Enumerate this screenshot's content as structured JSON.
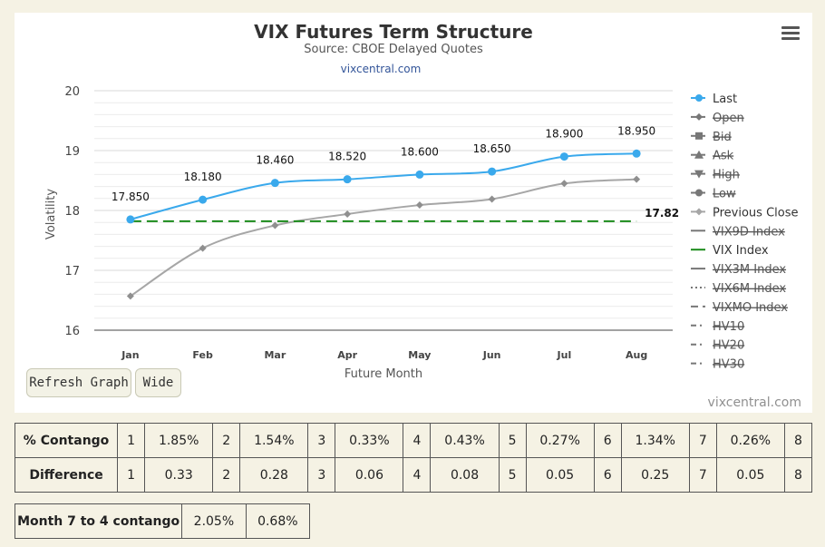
{
  "header": {
    "title": "VIX Futures Term Structure",
    "subtitle": "Source: CBOE Delayed Quotes",
    "link": "vixcentral.com",
    "credit": "vixcentral.com"
  },
  "buttons": {
    "refresh": "Refresh Graph",
    "wide": "Wide"
  },
  "menu_icon": "hamburger-menu-icon",
  "colors": {
    "last": "#3aa9ec",
    "previous_close": "#a6a6a6",
    "vix_index": "#1a8a1a",
    "legend_disabled": "#777777",
    "background": "#f5f2e4"
  },
  "chart_data": {
    "type": "line",
    "title": "VIX Futures Term Structure",
    "subtitle": "Source: CBOE Delayed Quotes",
    "xlabel": "Future Month",
    "ylabel": "Volatility",
    "categories": [
      "Jan",
      "Feb",
      "Mar",
      "Apr",
      "May",
      "Jun",
      "Jul",
      "Aug"
    ],
    "ylim": [
      16,
      20
    ],
    "yticks": [
      16,
      17,
      18,
      19,
      20
    ],
    "grid": true,
    "legend_position": "right",
    "series": [
      {
        "name": "Last",
        "values": [
          17.85,
          18.18,
          18.46,
          18.52,
          18.6,
          18.65,
          18.9,
          18.95
        ],
        "labels": [
          "17.850",
          "18.180",
          "18.460",
          "18.520",
          "18.600",
          "18.650",
          "18.900",
          "18.950"
        ],
        "color": "#3aa9ec"
      },
      {
        "name": "Previous Close",
        "values": [
          16.57,
          17.37,
          17.75,
          17.94,
          18.09,
          18.19,
          18.45,
          18.52
        ],
        "color": "#a6a6a6"
      },
      {
        "name": "VIX Index",
        "values": [
          17.82,
          17.82,
          17.82,
          17.82,
          17.82,
          17.82,
          17.82,
          17.82
        ],
        "label": "17.82",
        "color": "#1a8a1a",
        "dash": true
      }
    ],
    "legend": [
      {
        "name": "Last",
        "symbol": "circle",
        "enabled": true
      },
      {
        "name": "Open",
        "symbol": "diamond",
        "enabled": false
      },
      {
        "name": "Bid",
        "symbol": "square",
        "enabled": false
      },
      {
        "name": "Ask",
        "symbol": "triangle",
        "enabled": false
      },
      {
        "name": "High",
        "symbol": "triangle-down",
        "enabled": false
      },
      {
        "name": "Low",
        "symbol": "circle",
        "enabled": false
      },
      {
        "name": "Previous Close",
        "symbol": "diamond",
        "enabled": true
      },
      {
        "name": "VIX9D Index",
        "symbol": "line",
        "enabled": false
      },
      {
        "name": "VIX Index",
        "symbol": "line",
        "enabled": true
      },
      {
        "name": "VIX3M Index",
        "symbol": "line",
        "enabled": false
      },
      {
        "name": "VIX6M Index",
        "symbol": "dotted",
        "enabled": false
      },
      {
        "name": "VIXMO Index",
        "symbol": "dashed",
        "enabled": false
      },
      {
        "name": "HV10",
        "symbol": "dashdot",
        "enabled": false
      },
      {
        "name": "HV20",
        "symbol": "dashdot",
        "enabled": false
      },
      {
        "name": "HV30",
        "symbol": "dashdot",
        "enabled": false
      }
    ]
  },
  "contango_table": {
    "rows": [
      {
        "label": "% Contango",
        "cells": [
          "1",
          "1.85%",
          "2",
          "1.54%",
          "3",
          "0.33%",
          "4",
          "0.43%",
          "5",
          "0.27%",
          "6",
          "1.34%",
          "7",
          "0.26%",
          "8"
        ]
      },
      {
        "label": "Difference",
        "cells": [
          "1",
          "0.33",
          "2",
          "0.28",
          "3",
          "0.06",
          "4",
          "0.08",
          "5",
          "0.05",
          "6",
          "0.25",
          "7",
          "0.05",
          "8"
        ]
      }
    ]
  },
  "month7to4": {
    "label": "Month 7 to 4 contango",
    "values": [
      "2.05%",
      "0.68%"
    ]
  }
}
